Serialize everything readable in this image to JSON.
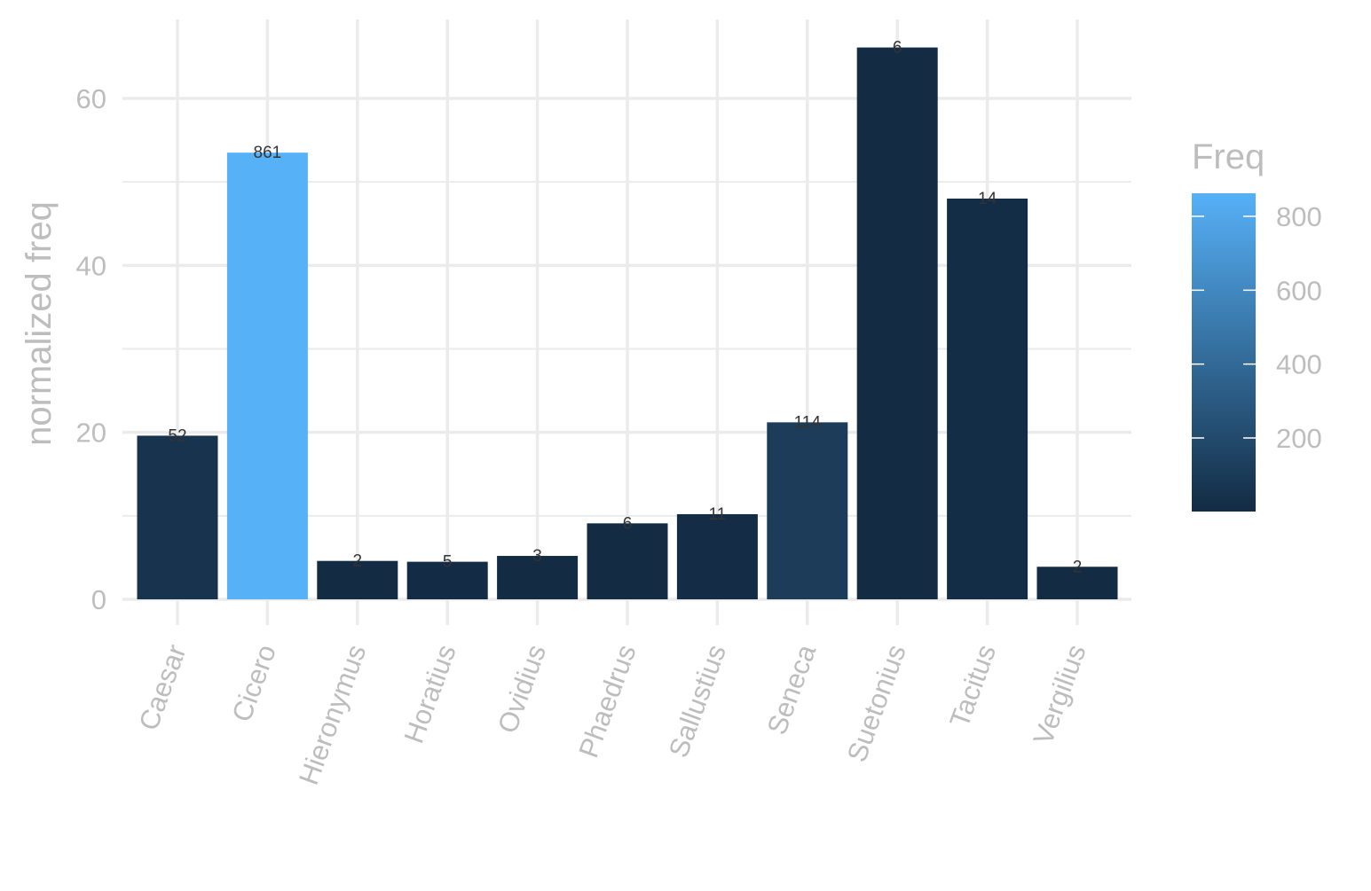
{
  "chart_data": {
    "type": "bar",
    "title": "",
    "xlabel": "",
    "ylabel": "normalized freq",
    "ylim": [
      0,
      69
    ],
    "yticks": [
      0,
      20,
      40,
      60
    ],
    "grid": true,
    "categories": [
      "Caesar",
      "Cicero",
      "Hieronymus",
      "Horatius",
      "Ovidius",
      "Phaedrus",
      "Sallustius",
      "Seneca",
      "Suetonius",
      "Tacitus",
      "Vergilius"
    ],
    "values": [
      19.6,
      53.5,
      4.6,
      4.5,
      5.2,
      9.1,
      10.2,
      21.2,
      66.1,
      48.0,
      3.9
    ],
    "labels": [
      "52",
      "861",
      "2",
      "5",
      "3",
      "6",
      "11",
      "114",
      "6",
      "14",
      "2"
    ],
    "fill_values": [
      52,
      861,
      2,
      5,
      3,
      6,
      11,
      114,
      6,
      14,
      2
    ],
    "legend": {
      "title": "Freq",
      "placement": "right",
      "ticks": [
        200,
        400,
        600,
        800
      ],
      "range": [
        2,
        861
      ],
      "low_color": "#132B43",
      "high_color": "#56B1F7"
    },
    "grid_color": "#ebebeb"
  }
}
